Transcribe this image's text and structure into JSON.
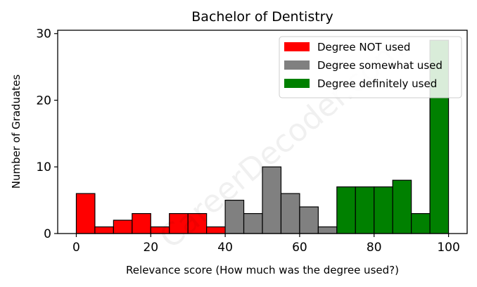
{
  "chart_data": {
    "type": "bar",
    "title": "Bachelor of Dentistry",
    "xlabel": "Relevance score (How much was the degree used?)",
    "ylabel": "Number of Graduates",
    "xlim": [
      -5,
      105
    ],
    "ylim": [
      0,
      30.5
    ],
    "xticks": [
      0,
      20,
      40,
      60,
      80,
      100
    ],
    "yticks": [
      0,
      10,
      20,
      30
    ],
    "bin_width": 5,
    "grid": false,
    "legend_position": "top-right",
    "series": [
      {
        "name": "Degree NOT used",
        "color": "#ff0000",
        "bins": [
          {
            "x": 0,
            "value": 6
          },
          {
            "x": 5,
            "value": 1
          },
          {
            "x": 10,
            "value": 2
          },
          {
            "x": 15,
            "value": 3
          },
          {
            "x": 20,
            "value": 1
          },
          {
            "x": 25,
            "value": 3
          },
          {
            "x": 30,
            "value": 3
          },
          {
            "x": 35,
            "value": 1
          }
        ]
      },
      {
        "name": "Degree somewhat used",
        "color": "#808080",
        "bins": [
          {
            "x": 40,
            "value": 5
          },
          {
            "x": 45,
            "value": 3
          },
          {
            "x": 50,
            "value": 10
          },
          {
            "x": 55,
            "value": 6
          },
          {
            "x": 60,
            "value": 4
          },
          {
            "x": 65,
            "value": 1
          }
        ]
      },
      {
        "name": "Degree definitely used",
        "color": "#008000",
        "bins": [
          {
            "x": 70,
            "value": 7
          },
          {
            "x": 75,
            "value": 7
          },
          {
            "x": 80,
            "value": 7
          },
          {
            "x": 85,
            "value": 8
          },
          {
            "x": 90,
            "value": 3
          },
          {
            "x": 95,
            "value": 29
          }
        ]
      }
    ]
  },
  "watermark": "CareerDecoder.com"
}
